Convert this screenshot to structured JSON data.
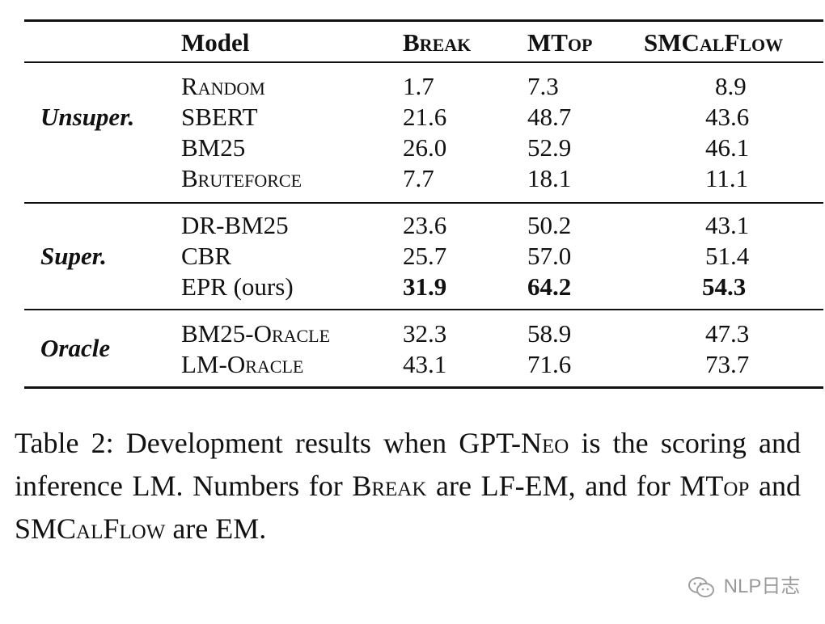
{
  "table": {
    "headers": [
      "Model",
      "Break",
      "MTop",
      "SMCalFlow"
    ],
    "groups": [
      {
        "label": "Unsuper.",
        "rows": [
          {
            "model": "Random",
            "break": "1.7",
            "mtop": "7.3",
            "smcalflow": "8.9"
          },
          {
            "model": "SBERT",
            "break": "21.6",
            "mtop": "48.7",
            "smcalflow": "43.6"
          },
          {
            "model": "BM25",
            "break": "26.0",
            "mtop": "52.9",
            "smcalflow": "46.1"
          },
          {
            "model": "Bruteforce",
            "break": "7.7",
            "mtop": "18.1",
            "smcalflow": "11.1"
          }
        ]
      },
      {
        "label": "Super.",
        "rows": [
          {
            "model": "DR-BM25",
            "break": "23.6",
            "mtop": "50.2",
            "smcalflow": "43.1"
          },
          {
            "model": "CBR",
            "break": "25.7",
            "mtop": "57.0",
            "smcalflow": "51.4"
          },
          {
            "model": "EPR (ours)",
            "break": "31.9",
            "mtop": "64.2",
            "smcalflow": "54.3"
          }
        ]
      },
      {
        "label": "Oracle",
        "rows": [
          {
            "model": "BM25-Oracle",
            "break": "32.3",
            "mtop": "58.9",
            "smcalflow": "47.3"
          },
          {
            "model": "LM-Oracle",
            "break": "43.1",
            "mtop": "71.6",
            "smcalflow": "73.7"
          }
        ]
      }
    ]
  },
  "caption": {
    "p1": "Table 2: Development results when GPT-",
    "p2": "Neo",
    "p3": " is the scoring and inference LM. Numbers for ",
    "p4": "Break",
    "p5": " are LF-EM, and for MT",
    "p6": "op",
    "p7": " and SMC",
    "p8": "al",
    "p9": "F",
    "p10": "low",
    "p11": " are EM."
  },
  "watermark": {
    "icon": "wechat-icon",
    "text": "NLP日志"
  }
}
